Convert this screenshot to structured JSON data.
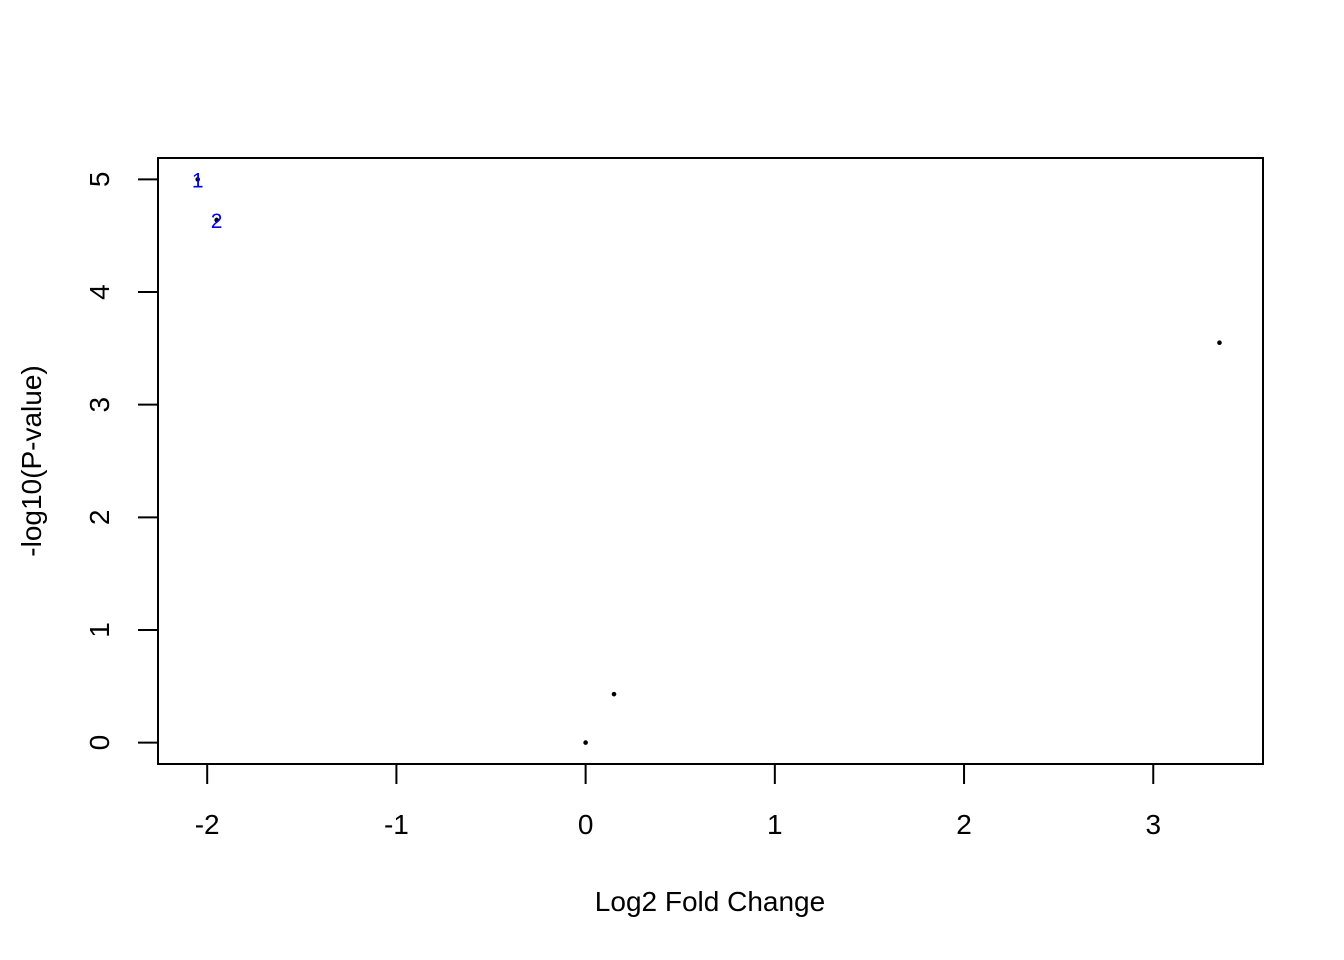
{
  "chart_data": {
    "type": "scatter",
    "title": "",
    "xlabel": "Log2 Fold Change",
    "ylabel": "-log10(P-value)",
    "xlim": [
      -2.26,
      3.58
    ],
    "ylim": [
      -0.19,
      5.19
    ],
    "xticks": [
      -2,
      -1,
      0,
      1,
      2,
      3
    ],
    "xtick_labels": [
      "-2",
      "-1",
      "0",
      "1",
      "2",
      "3"
    ],
    "yticks": [
      0,
      1,
      2,
      3,
      4,
      5
    ],
    "ytick_labels": [
      "0",
      "1",
      "2",
      "3",
      "4",
      "5"
    ],
    "grid": false,
    "legend": "none",
    "point_color": "#000000",
    "label_color": "#0000ff",
    "points": [
      {
        "x": -2.05,
        "y": 5.0,
        "label": "1"
      },
      {
        "x": -1.95,
        "y": 4.64,
        "label": "2"
      },
      {
        "x": 3.35,
        "y": 3.55,
        "label": ""
      },
      {
        "x": 0.15,
        "y": 0.43,
        "label": ""
      },
      {
        "x": 0.0,
        "y": 0.0,
        "label": ""
      }
    ]
  }
}
